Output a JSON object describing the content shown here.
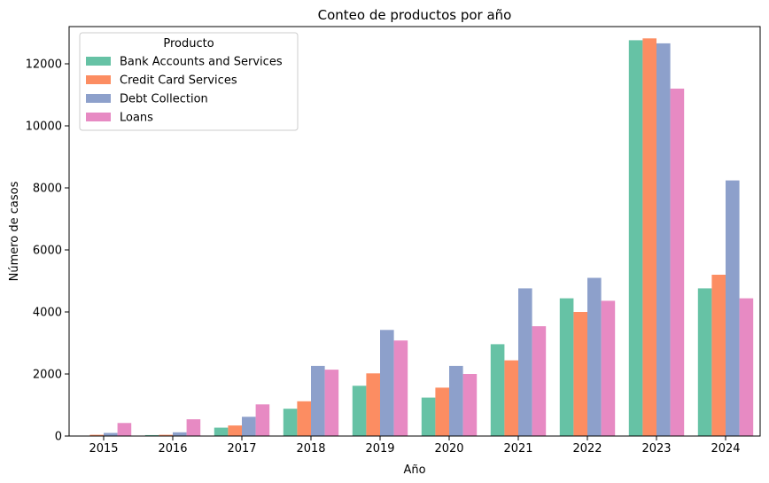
{
  "chart_data": {
    "type": "bar",
    "title": "Conteo de productos por año",
    "xlabel": "Año",
    "ylabel": "Número de casos",
    "categories": [
      "2015",
      "2016",
      "2017",
      "2018",
      "2019",
      "2020",
      "2021",
      "2022",
      "2023",
      "2024"
    ],
    "ylim": [
      0,
      13200
    ],
    "yticks": [
      0,
      2000,
      4000,
      6000,
      8000,
      10000,
      12000
    ],
    "grid": false,
    "legend": {
      "title": "Producto",
      "placement": "top-left"
    },
    "series": [
      {
        "name": "Bank Accounts and Services",
        "color": "#66c2a5",
        "values": [
          10,
          30,
          270,
          880,
          1620,
          1240,
          2960,
          4440,
          12760,
          4760
        ]
      },
      {
        "name": "Credit Card Services",
        "color": "#fc8d62",
        "values": [
          40,
          40,
          340,
          1120,
          2020,
          1560,
          2440,
          4000,
          12820,
          5200
        ]
      },
      {
        "name": "Debt Collection",
        "color": "#8da0cb",
        "values": [
          100,
          120,
          620,
          2260,
          3420,
          2260,
          4760,
          5100,
          12660,
          8240
        ]
      },
      {
        "name": "Loans",
        "color": "#e78ac3",
        "values": [
          420,
          540,
          1020,
          2140,
          3080,
          2000,
          3540,
          4360,
          11200,
          4440
        ]
      }
    ]
  }
}
